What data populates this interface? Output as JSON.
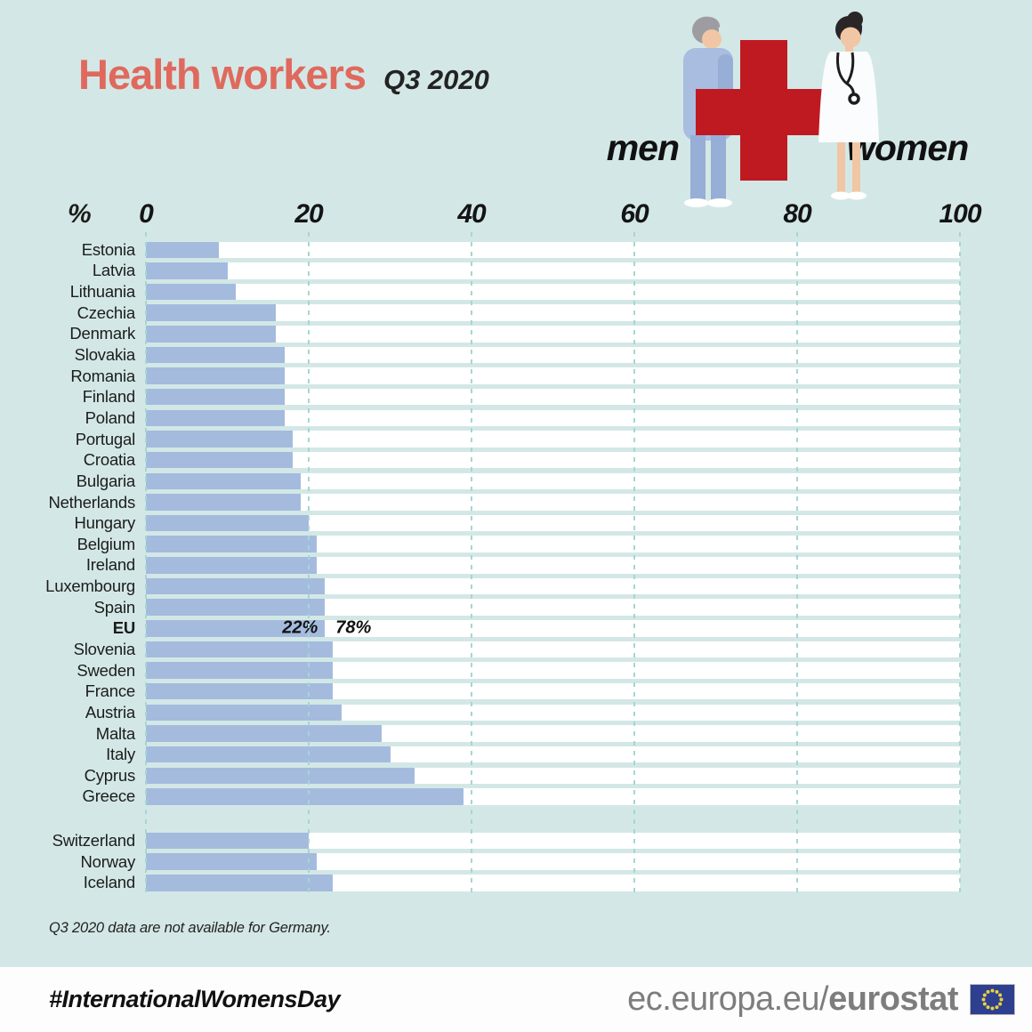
{
  "title": "Health workers",
  "subtitle": "Q3 2020",
  "legend": {
    "men": "men",
    "women": "women"
  },
  "note": "Q3 2020 data are not available for Germany.",
  "footer": {
    "hashtag": "#InternationalWomensDay",
    "url_regular": "ec.europa.eu/",
    "url_bold": "eurostat"
  },
  "colors": {
    "background": "#d3e8e6",
    "bar_men": "#a4bbde",
    "bar_women": "#ffffff",
    "grid": "#a5d6d3",
    "title": "#e0695d",
    "cross_red": "#bf1a22",
    "footer_url": "#7d7d7d",
    "flag_blue": "#2e3f90",
    "flag_star": "#e6d33f"
  },
  "icons": [
    "man-icon",
    "red-cross-icon",
    "woman-doctor-icon",
    "eu-flag-icon"
  ],
  "chart_data": {
    "type": "bar",
    "orientation": "horizontal",
    "stacked": true,
    "unit": "%",
    "xlim": [
      0,
      100
    ],
    "ticks": [
      0,
      20,
      40,
      60,
      80,
      100
    ],
    "grid": "dashed-vertical",
    "series_names": [
      "men",
      "women"
    ],
    "series_colors": [
      "#a4bbde",
      "#ffffff"
    ],
    "rows": [
      {
        "label": "Estonia",
        "men": 9,
        "women": 91
      },
      {
        "label": "Latvia",
        "men": 10,
        "women": 90
      },
      {
        "label": "Lithuania",
        "men": 11,
        "women": 89
      },
      {
        "label": "Czechia",
        "men": 16,
        "women": 84
      },
      {
        "label": "Denmark",
        "men": 16,
        "women": 84
      },
      {
        "label": "Slovakia",
        "men": 17,
        "women": 83
      },
      {
        "label": "Romania",
        "men": 17,
        "women": 83
      },
      {
        "label": "Finland",
        "men": 17,
        "women": 83
      },
      {
        "label": "Poland",
        "men": 17,
        "women": 83
      },
      {
        "label": "Portugal",
        "men": 18,
        "women": 82
      },
      {
        "label": "Croatia",
        "men": 18,
        "women": 82
      },
      {
        "label": "Bulgaria",
        "men": 19,
        "women": 81
      },
      {
        "label": "Netherlands",
        "men": 19,
        "women": 81
      },
      {
        "label": "Hungary",
        "men": 20,
        "women": 80
      },
      {
        "label": "Belgium",
        "men": 21,
        "women": 79
      },
      {
        "label": "Ireland",
        "men": 21,
        "women": 79
      },
      {
        "label": "Luxembourg",
        "men": 22,
        "women": 78
      },
      {
        "label": "Spain",
        "men": 22,
        "women": 78
      },
      {
        "label": "EU",
        "men": 22,
        "women": 78,
        "emphasis": true,
        "men_label": "22%",
        "women_label": "78%"
      },
      {
        "label": "Slovenia",
        "men": 23,
        "women": 77
      },
      {
        "label": "Sweden",
        "men": 23,
        "women": 77
      },
      {
        "label": "France",
        "men": 23,
        "women": 77
      },
      {
        "label": "Austria",
        "men": 24,
        "women": 76
      },
      {
        "label": "Malta",
        "men": 29,
        "women": 71
      },
      {
        "label": "Italy",
        "men": 30,
        "women": 70
      },
      {
        "label": "Cyprus",
        "men": 33,
        "women": 67
      },
      {
        "label": "Greece",
        "men": 39,
        "women": 61
      },
      {
        "label": "Switzerland",
        "men": 20,
        "women": 80,
        "gap_before": true
      },
      {
        "label": "Norway",
        "men": 21,
        "women": 79
      },
      {
        "label": "Iceland",
        "men": 23,
        "women": 77
      }
    ]
  }
}
